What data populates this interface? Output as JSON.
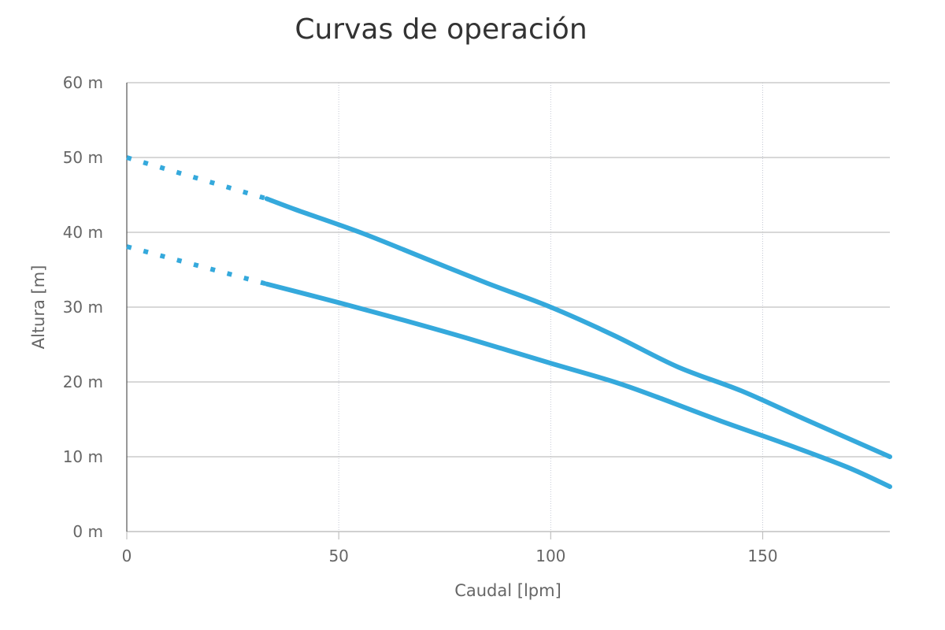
{
  "chart_data": {
    "type": "line",
    "title": "Curvas de operación",
    "xlabel": "Caudal [lpm]",
    "ylabel": "Altura [m]",
    "xlim": [
      0,
      180
    ],
    "ylim": [
      0,
      60
    ],
    "x_ticks": [
      0,
      50,
      100,
      150
    ],
    "x_tick_labels": [
      "0",
      "50",
      "100",
      "150"
    ],
    "y_ticks": [
      0,
      10,
      20,
      30,
      40,
      50,
      60
    ],
    "y_tick_labels": [
      "0 m",
      "10 m",
      "20 m",
      "30 m",
      "40 m",
      "50 m",
      "60 m"
    ],
    "grid": {
      "x": true,
      "y": true
    },
    "legend": "none",
    "colors": {
      "series": "#35a9dc",
      "grid_y": "#c0c0c0",
      "grid_x": "#c4c8d4",
      "axis": "#555555",
      "title": "#333333",
      "labels": "#666666"
    },
    "series": [
      {
        "dashed": [
          [
            0,
            50
          ],
          [
            33,
            44.5
          ]
        ],
        "solid": [
          [
            33,
            44.5
          ],
          [
            40,
            43
          ],
          [
            55,
            40
          ],
          [
            70,
            36.6
          ],
          [
            85,
            33.2
          ],
          [
            100,
            30
          ],
          [
            115,
            26.2
          ],
          [
            130,
            22
          ],
          [
            145,
            18.8
          ],
          [
            160,
            15
          ],
          [
            180,
            10
          ]
        ]
      },
      {
        "dashed": [
          [
            0,
            38.1
          ],
          [
            33,
            33.1
          ]
        ],
        "solid": [
          [
            33,
            33.1
          ],
          [
            50,
            30.6
          ],
          [
            65,
            28.3
          ],
          [
            80,
            25.9
          ],
          [
            100,
            22.5
          ],
          [
            115,
            20
          ],
          [
            125,
            18
          ],
          [
            140,
            14.8
          ],
          [
            155,
            11.8
          ],
          [
            170,
            8.6
          ],
          [
            180,
            6
          ]
        ]
      }
    ]
  }
}
